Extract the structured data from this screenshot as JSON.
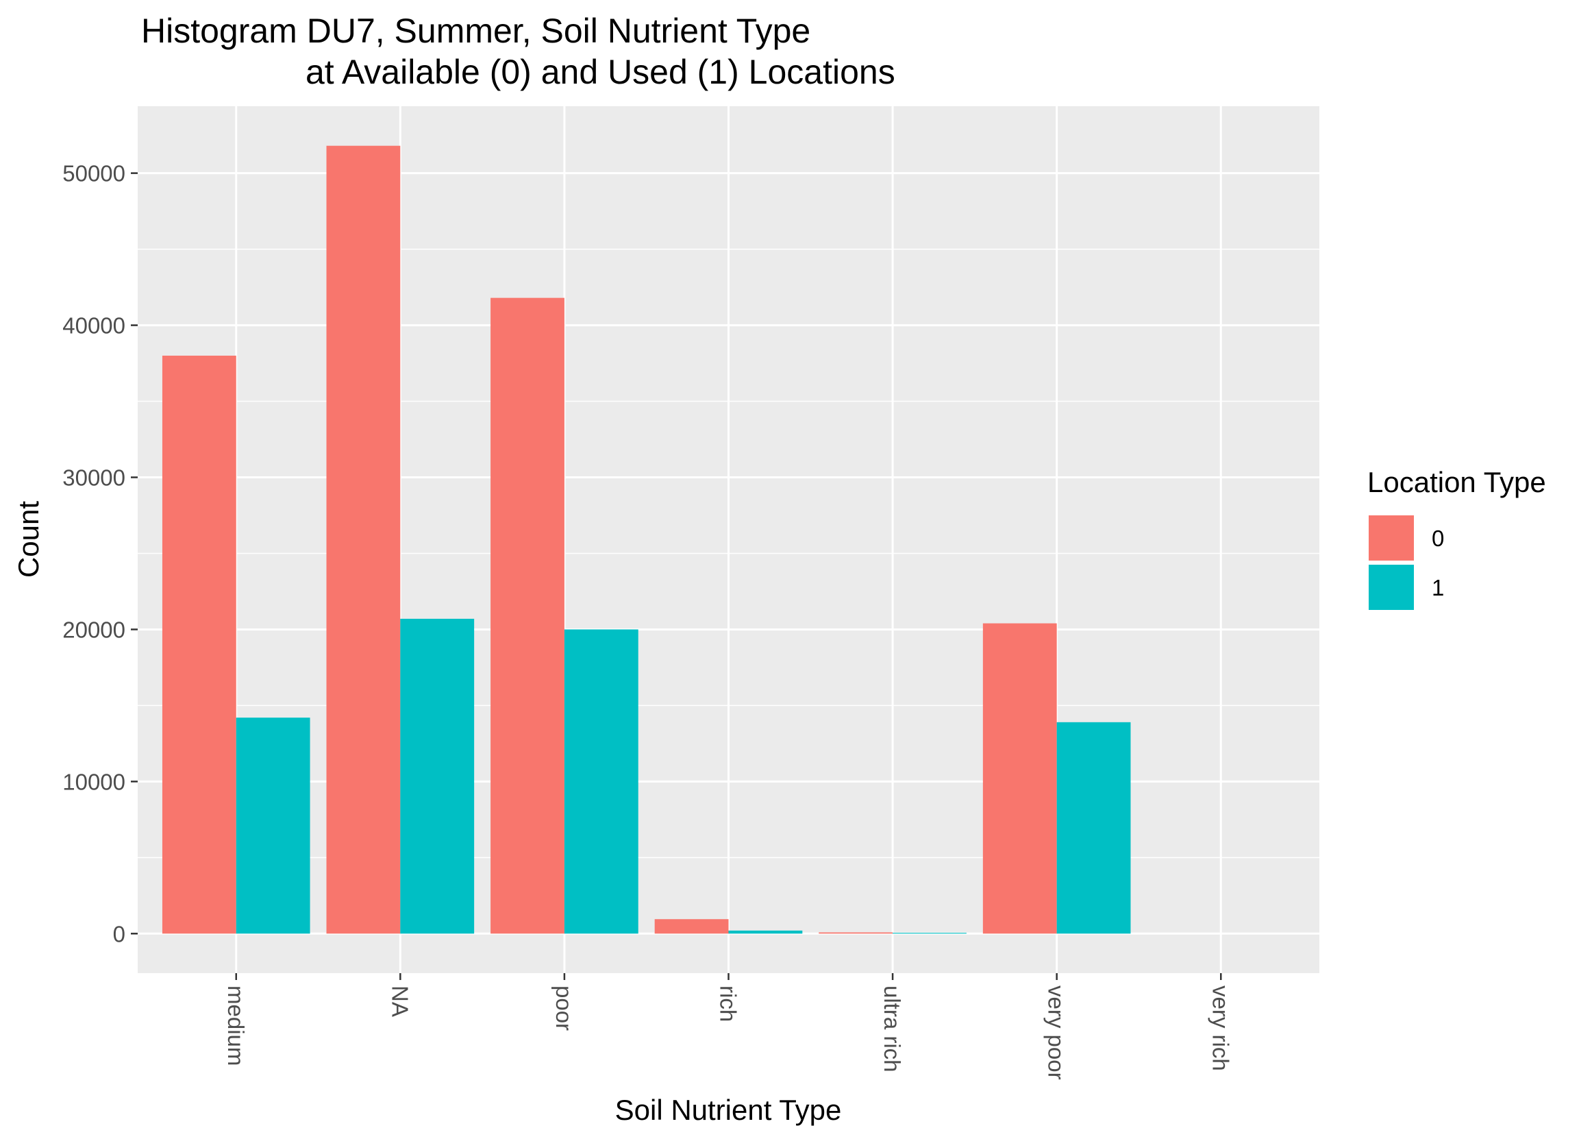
{
  "chart_data": {
    "type": "bar",
    "title_line1": "Histogram DU7, Summer, Soil Nutrient Type",
    "title_line2": "at Available (0) and Used (1) Locations",
    "xlabel": "Soil Nutrient Type",
    "ylabel": "Count",
    "categories": [
      "medium",
      "NA",
      "poor",
      "rich",
      "ultra rich",
      "very poor",
      "very rich"
    ],
    "series": [
      {
        "name": "0",
        "color": "#F8766D",
        "values": [
          38000,
          51800,
          41800,
          950,
          80,
          20400,
          0
        ]
      },
      {
        "name": "1",
        "color": "#00BFC4",
        "values": [
          14200,
          20700,
          20000,
          200,
          50,
          13900,
          0
        ]
      }
    ],
    "yticks": [
      0,
      10000,
      20000,
      30000,
      40000,
      50000
    ],
    "ylim": [
      -2600,
      54400
    ],
    "grid": true,
    "legend": {
      "title": "Location Type",
      "position": "right"
    }
  }
}
